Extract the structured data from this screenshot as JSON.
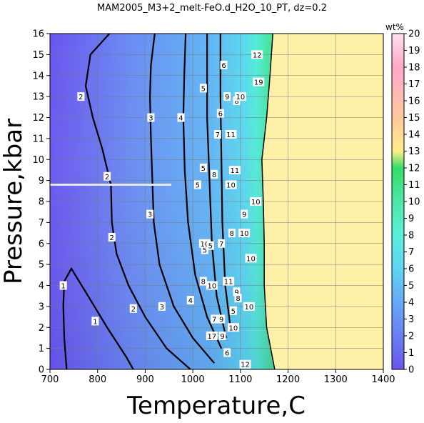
{
  "chart_data": {
    "type": "heatmap",
    "title": "MAM2005_M3+2_melt-FeO.d_H2O_10_PT, dz=0.2",
    "xlabel": "Temperature,C",
    "ylabel": "Pressure,kbar",
    "xlim": [
      700,
      1400
    ],
    "ylim": [
      0,
      16
    ],
    "x_ticks": [
      700,
      800,
      900,
      1000,
      1100,
      1200,
      1300,
      1400
    ],
    "y_ticks": [
      0,
      1,
      2,
      3,
      4,
      5,
      6,
      7,
      8,
      9,
      10,
      11,
      12,
      13,
      14,
      15,
      16
    ],
    "grid": true,
    "colorbar": {
      "label": "wt%",
      "range": [
        0,
        20
      ],
      "ticks": [
        0,
        1,
        2,
        3,
        4,
        5,
        6,
        7,
        8,
        9,
        10,
        11,
        12,
        13,
        14,
        15,
        16,
        17,
        18,
        19,
        20
      ],
      "stops": [
        {
          "value": 0,
          "color": "#6655ee"
        },
        {
          "value": 2,
          "color": "#6a7ef2"
        },
        {
          "value": 4,
          "color": "#68a8f4"
        },
        {
          "value": 6,
          "color": "#5fd4f2"
        },
        {
          "value": 8,
          "color": "#5aeedd"
        },
        {
          "value": 10,
          "color": "#4fe6a8"
        },
        {
          "value": 12,
          "color": "#33dd66"
        },
        {
          "value": 13,
          "color": "#ffee88"
        },
        {
          "value": 15,
          "color": "#ffc8a0"
        },
        {
          "value": 18,
          "color": "#ffa8c8"
        },
        {
          "value": 20,
          "color": "#ffe0f0"
        }
      ]
    },
    "solidus_boundary": [
      {
        "x": 1172,
        "y": 0
      },
      {
        "x": 1155,
        "y": 2
      },
      {
        "x": 1150,
        "y": 4
      },
      {
        "x": 1150,
        "y": 6
      },
      {
        "x": 1148,
        "y": 8
      },
      {
        "x": 1145,
        "y": 10
      },
      {
        "x": 1155,
        "y": 12
      },
      {
        "x": 1162,
        "y": 14
      },
      {
        "x": 1168,
        "y": 16
      }
    ],
    "above_solidus_color": "#fff0a8",
    "missing_data_row": {
      "y": 8.8,
      "x_start": 700,
      "x_end": 955
    },
    "contours": [
      {
        "level": "1",
        "points": [
          [
            735,
            0.0
          ],
          [
            730,
            1.5
          ],
          [
            728,
            3.0
          ],
          [
            730,
            4.2
          ],
          [
            745,
            4.8
          ],
          [
            780,
            3.5
          ],
          [
            820,
            2.0
          ],
          [
            860,
            0.6
          ],
          [
            875,
            0.0
          ]
        ]
      },
      {
        "level": "2",
        "points": [
          [
            995,
            0.0
          ],
          [
            945,
            1.0
          ],
          [
            900,
            2.5
          ],
          [
            865,
            4.0
          ],
          [
            840,
            5.5
          ],
          [
            830,
            7.0
          ],
          [
            828,
            8.8
          ],
          [
            810,
            10.5
          ],
          [
            790,
            12.0
          ],
          [
            775,
            13.5
          ],
          [
            785,
            15.0
          ],
          [
            825,
            16.0
          ]
        ]
      },
      {
        "level": "3",
        "points": [
          [
            1045,
            0.3
          ],
          [
            1000,
            1.5
          ],
          [
            960,
            3.0
          ],
          [
            930,
            5.0
          ],
          [
            918,
            7.0
          ],
          [
            915,
            9.0
          ],
          [
            912,
            11.0
          ],
          [
            910,
            13.0
          ],
          [
            912,
            14.5
          ],
          [
            920,
            16.0
          ]
        ]
      },
      {
        "level": "4",
        "points": [
          [
            1060,
            1.0
          ],
          [
            1030,
            2.5
          ],
          [
            1005,
            4.5
          ],
          [
            990,
            7.0
          ],
          [
            983,
            9.5
          ],
          [
            980,
            12.0
          ],
          [
            982,
            14.0
          ],
          [
            985,
            16.0
          ]
        ]
      },
      {
        "level": "5",
        "points": [
          [
            1070,
            1.5
          ],
          [
            1050,
            3.5
          ],
          [
            1040,
            6.0
          ],
          [
            1035,
            9.0
          ],
          [
            1030,
            12.0
          ],
          [
            1030,
            16.0
          ]
        ]
      },
      {
        "level": "6",
        "points": [
          [
            1080,
            1.8
          ],
          [
            1068,
            4.0
          ],
          [
            1062,
            7.0
          ],
          [
            1060,
            10.0
          ],
          [
            1058,
            13.0
          ],
          [
            1058,
            16.0
          ]
        ]
      }
    ],
    "contour_labels": [
      {
        "text": "1",
        "x": 728,
        "y": 4.0
      },
      {
        "text": "1",
        "x": 795,
        "y": 2.3
      },
      {
        "text": "2",
        "x": 765,
        "y": 13.0
      },
      {
        "text": "2",
        "x": 820,
        "y": 9.2
      },
      {
        "text": "2",
        "x": 830,
        "y": 6.3
      },
      {
        "text": "2",
        "x": 875,
        "y": 2.9
      },
      {
        "text": "3",
        "x": 912,
        "y": 12.0
      },
      {
        "text": "3",
        "x": 910,
        "y": 7.4
      },
      {
        "text": "3",
        "x": 935,
        "y": 3.0
      },
      {
        "text": "4",
        "x": 975,
        "y": 12.0
      },
      {
        "text": "4",
        "x": 995,
        "y": 3.3
      },
      {
        "text": "5",
        "x": 1022,
        "y": 13.4
      },
      {
        "text": "5",
        "x": 1022,
        "y": 9.6
      },
      {
        "text": "5",
        "x": 1010,
        "y": 8.8
      },
      {
        "text": "5",
        "x": 1025,
        "y": 5.7
      },
      {
        "text": "6",
        "x": 1065,
        "y": 14.5
      },
      {
        "text": "6",
        "x": 1058,
        "y": 12.2
      },
      {
        "text": "7",
        "x": 1052,
        "y": 11.2
      },
      {
        "text": "7",
        "x": 1045,
        "y": 2.4
      },
      {
        "text": "8",
        "x": 1092,
        "y": 12.8
      },
      {
        "text": "9",
        "x": 1072,
        "y": 13.0
      },
      {
        "text": "10",
        "x": 1100,
        "y": 13.0
      },
      {
        "text": "11",
        "x": 1080,
        "y": 11.2
      },
      {
        "text": "12",
        "x": 1135,
        "y": 15.0
      },
      {
        "text": "19",
        "x": 1138,
        "y": 13.7
      },
      {
        "text": "10",
        "x": 1080,
        "y": 8.8
      },
      {
        "text": "8",
        "x": 1045,
        "y": 9.3
      },
      {
        "text": "11",
        "x": 1088,
        "y": 9.5
      },
      {
        "text": "10",
        "x": 1132,
        "y": 8.0
      },
      {
        "text": "9",
        "x": 1108,
        "y": 7.4
      },
      {
        "text": "8",
        "x": 1082,
        "y": 6.5
      },
      {
        "text": "10",
        "x": 1108,
        "y": 6.5
      },
      {
        "text": "7",
        "x": 1060,
        "y": 6.0
      },
      {
        "text": "10",
        "x": 1025,
        "y": 6.0
      },
      {
        "text": "5",
        "x": 1037,
        "y": 5.9
      },
      {
        "text": "10",
        "x": 1122,
        "y": 5.3
      },
      {
        "text": "8",
        "x": 1022,
        "y": 4.2
      },
      {
        "text": "10",
        "x": 1040,
        "y": 4.0
      },
      {
        "text": "11",
        "x": 1075,
        "y": 4.2
      },
      {
        "text": "9",
        "x": 1092,
        "y": 3.7
      },
      {
        "text": "8",
        "x": 1095,
        "y": 3.4
      },
      {
        "text": "10",
        "x": 1118,
        "y": 3.0
      },
      {
        "text": "5",
        "x": 1085,
        "y": 2.8
      },
      {
        "text": "9",
        "x": 1060,
        "y": 2.4
      },
      {
        "text": "10",
        "x": 1085,
        "y": 2.0
      },
      {
        "text": "17",
        "x": 1040,
        "y": 1.6
      },
      {
        "text": "9",
        "x": 1062,
        "y": 1.6
      },
      {
        "text": "6",
        "x": 1072,
        "y": 0.8
      },
      {
        "text": "12",
        "x": 1110,
        "y": 0.25
      }
    ]
  }
}
